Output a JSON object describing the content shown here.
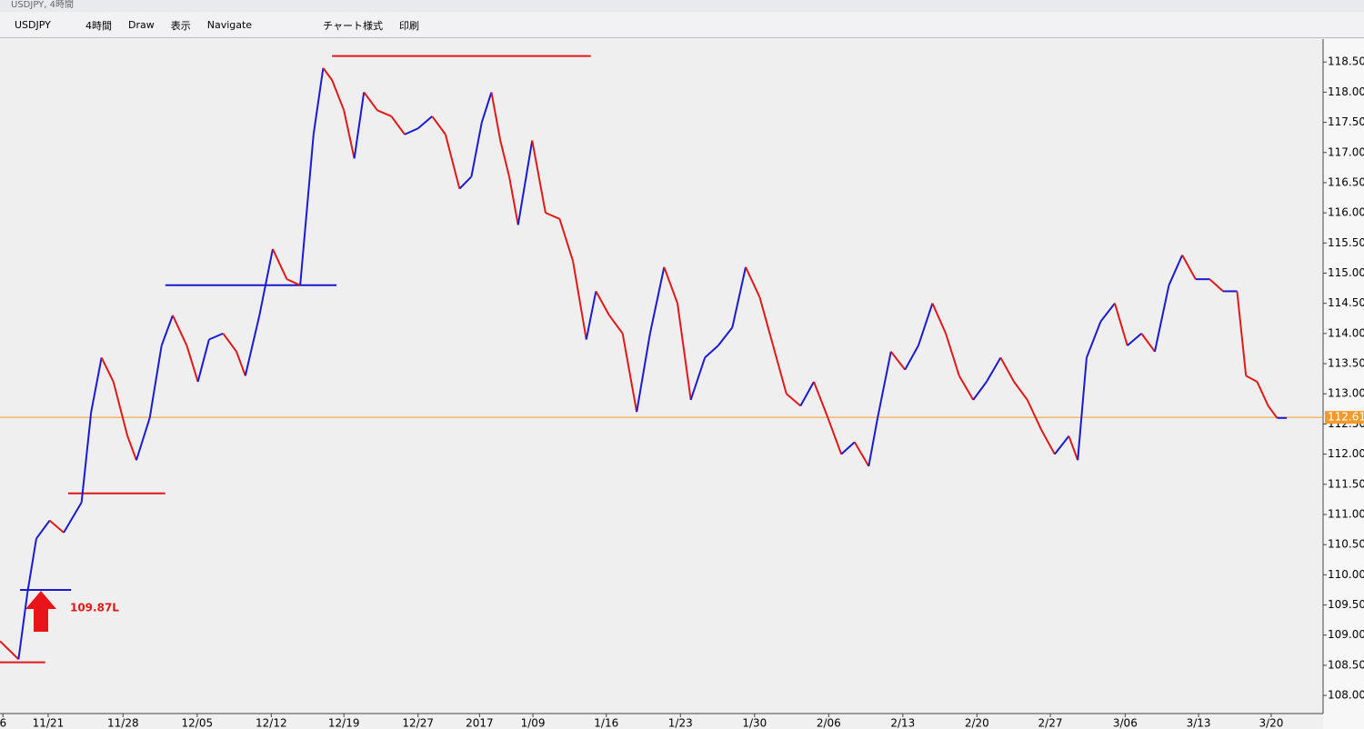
{
  "header": {
    "title": "USDJPY, 4時間"
  },
  "toolbar": {
    "items": [
      "USDJPY",
      "4時間",
      "Draw",
      "表示",
      "Navigate",
      "チャート様式",
      "印刷"
    ]
  },
  "chart_data": {
    "type": "line",
    "up_color": "#1a1ad0",
    "down_color": "#e01818",
    "x": [
      -0.65,
      -0.4,
      -0.28,
      -0.16,
      0.02,
      0.21,
      0.45,
      0.58,
      0.72,
      0.88,
      1.07,
      1.19,
      1.37,
      1.53,
      1.68,
      1.87,
      2.02,
      2.17,
      2.36,
      2.54,
      2.66,
      2.85,
      3.03,
      3.22,
      3.4,
      3.58,
      3.71,
      3.83,
      3.99,
      4.13,
      4.26,
      4.44,
      4.63,
      4.81,
      4.99,
      5.18,
      5.36,
      5.55,
      5.71,
      5.85,
      5.98,
      6.1,
      6.22,
      6.34,
      6.53,
      6.71,
      6.9,
      7.08,
      7.26,
      7.39,
      7.57,
      7.75,
      7.94,
      8.12,
      8.31,
      8.49,
      8.67,
      8.86,
      9.04,
      9.23,
      9.41,
      9.6,
      9.78,
      9.96,
      10.15,
      10.33,
      10.52,
      10.7,
      10.88,
      11.07,
      11.19,
      11.37,
      11.56,
      11.74,
      11.93,
      12.11,
      12.29,
      12.48,
      12.66,
      12.85,
      13.03,
      13.21,
      13.4,
      13.58,
      13.77,
      13.89,
      14.01,
      14.2,
      14.39,
      14.56,
      14.75,
      14.93,
      15.12,
      15.3,
      15.48,
      15.67,
      15.85,
      16.04,
      16.16,
      16.31,
      16.46,
      16.58,
      16.71
    ],
    "values": [
      108.9,
      108.6,
      109.7,
      110.6,
      110.9,
      110.7,
      111.2,
      112.7,
      113.6,
      113.2,
      112.3,
      111.9,
      112.6,
      113.8,
      114.3,
      113.8,
      113.2,
      113.9,
      114.0,
      113.7,
      113.3,
      114.3,
      115.4,
      114.9,
      114.8,
      117.3,
      118.4,
      118.2,
      117.7,
      116.9,
      118.0,
      117.7,
      117.6,
      117.3,
      117.4,
      117.6,
      117.3,
      116.4,
      116.6,
      117.5,
      118.0,
      117.2,
      116.6,
      115.8,
      117.2,
      116.0,
      115.9,
      115.2,
      113.9,
      114.7,
      114.3,
      114.0,
      112.7,
      114.0,
      115.1,
      114.5,
      112.9,
      113.6,
      113.8,
      114.1,
      115.1,
      114.6,
      113.8,
      113.0,
      112.8,
      113.2,
      112.6,
      112.0,
      112.2,
      111.8,
      112.6,
      113.7,
      113.4,
      113.8,
      114.5,
      114.0,
      113.3,
      112.9,
      113.2,
      113.6,
      113.2,
      112.9,
      112.4,
      112.0,
      112.3,
      111.9,
      113.6,
      114.2,
      114.5,
      113.8,
      114.0,
      113.7,
      114.8,
      115.3,
      114.9,
      114.9,
      114.7,
      114.7,
      113.3,
      113.2,
      112.8,
      112.6,
      112.6
    ],
    "xlim": [
      -0.65,
      17.2
    ],
    "xticks": [
      {
        "value": -0.61,
        "label": "6"
      },
      {
        "value": 0,
        "label": "11/21"
      },
      {
        "value": 1.01,
        "label": "11/28"
      },
      {
        "value": 2.01,
        "label": "12/05"
      },
      {
        "value": 3.01,
        "label": "12/12"
      },
      {
        "value": 3.99,
        "label": "12/19"
      },
      {
        "value": 4.99,
        "label": "12/27"
      },
      {
        "value": 5.82,
        "label": "2017"
      },
      {
        "value": 6.54,
        "label": "1/09"
      },
      {
        "value": 7.53,
        "label": "1/16"
      },
      {
        "value": 8.53,
        "label": "1/23"
      },
      {
        "value": 9.53,
        "label": "1/30"
      },
      {
        "value": 10.53,
        "label": "2/06"
      },
      {
        "value": 11.53,
        "label": "2/13"
      },
      {
        "value": 12.53,
        "label": "2/20"
      },
      {
        "value": 13.52,
        "label": "2/27"
      },
      {
        "value": 14.53,
        "label": "3/06"
      },
      {
        "value": 15.52,
        "label": "3/13"
      },
      {
        "value": 16.5,
        "label": "3/20"
      }
    ],
    "ylim": [
      107.7,
      118.88
    ],
    "yticks": [
      {
        "value": 108,
        "label": "108.00"
      },
      {
        "value": 108.5,
        "label": "108.50"
      },
      {
        "value": 109,
        "label": "109.00"
      },
      {
        "value": 109.5,
        "label": "109.50"
      },
      {
        "value": 110,
        "label": "110.00"
      },
      {
        "value": 110.5,
        "label": "110.50"
      },
      {
        "value": 111,
        "label": "111.00"
      },
      {
        "value": 111.5,
        "label": "111.50"
      },
      {
        "value": 112,
        "label": "112.00"
      },
      {
        "value": 112.5,
        "label": "112.50"
      },
      {
        "value": 113,
        "label": "113.00"
      },
      {
        "value": 113.5,
        "label": "113.50"
      },
      {
        "value": 114,
        "label": "114.00"
      },
      {
        "value": 114.5,
        "label": "114.50"
      },
      {
        "value": 115,
        "label": "115.00"
      },
      {
        "value": 115.5,
        "label": "115.50"
      },
      {
        "value": 116,
        "label": "116.00"
      },
      {
        "value": 116.5,
        "label": "116.50"
      },
      {
        "value": 117,
        "label": "117.00"
      },
      {
        "value": 117.5,
        "label": "117.50"
      },
      {
        "value": 118,
        "label": "118.00"
      },
      {
        "value": 118.5,
        "label": "118.50"
      }
    ],
    "level_lines": [
      {
        "color": "#e01818",
        "y": 118.6,
        "x": [
          3.83,
          7.32
        ]
      },
      {
        "color": "#1a1ad0",
        "y": 114.8,
        "x": [
          1.58,
          3.89
        ]
      },
      {
        "color": "#e01818",
        "y": 111.35,
        "x": [
          0.27,
          1.58
        ]
      },
      {
        "color": "#1a1ad0",
        "y": 109.75,
        "x": [
          -0.38,
          0.31
        ]
      },
      {
        "color": "#e01818",
        "y": 108.55,
        "x": [
          -0.65,
          -0.04
        ]
      }
    ],
    "current_price": {
      "value": 112.61,
      "label": "112.61",
      "color": "#f39a2a"
    },
    "annotation": {
      "text": "109.87L",
      "x": 0.27,
      "y": 109.45,
      "color": "#e01818"
    }
  }
}
